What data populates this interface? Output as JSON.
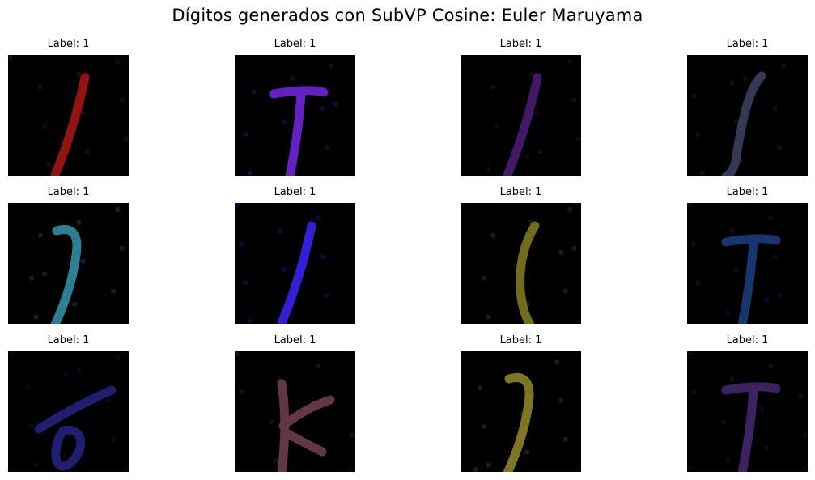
{
  "figure": {
    "title": "Dígitos generados con SubVP Cosine: Euler Maruyama"
  },
  "panels": [
    {
      "label": "Label: 1",
      "stroke_color": "#a01414",
      "shape": "slash"
    },
    {
      "label": "Label: 1",
      "stroke_color": "#6a24d0",
      "shape": "tee"
    },
    {
      "label": "Label: 1",
      "stroke_color": "#4a1a70",
      "shape": "slash"
    },
    {
      "label": "Label: 1",
      "stroke_color": "#3a3e5a",
      "shape": "hook"
    },
    {
      "label": "Label: 1",
      "stroke_color": "#2e8aa0",
      "shape": "j"
    },
    {
      "label": "Label: 1",
      "stroke_color": "#3a22e6",
      "shape": "slash"
    },
    {
      "label": "Label: 1",
      "stroke_color": "#7a7420",
      "shape": "paren"
    },
    {
      "label": "Label: 1",
      "stroke_color": "#1a3a78",
      "shape": "tee"
    },
    {
      "label": "Label: 1",
      "stroke_color": "#24207a",
      "shape": "loop"
    },
    {
      "label": "Label: 1",
      "stroke_color": "#6a3a4e",
      "shape": "k"
    },
    {
      "label": "Label: 1",
      "stroke_color": "#8a8024",
      "shape": "j"
    },
    {
      "label": "Label: 1",
      "stroke_color": "#40266a",
      "shape": "tee"
    }
  ]
}
